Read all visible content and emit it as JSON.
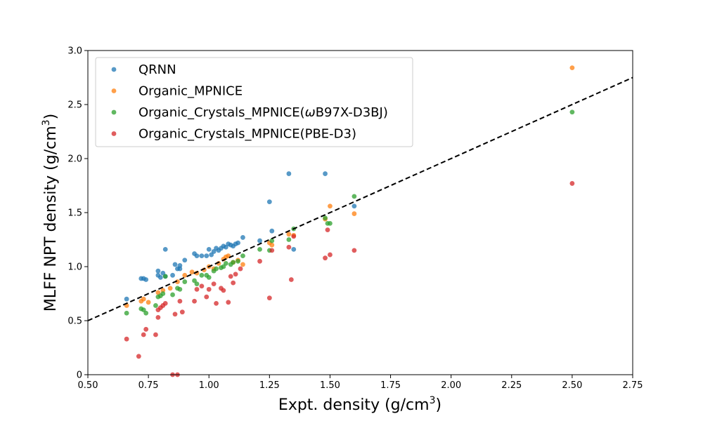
{
  "chart_data": {
    "type": "scatter",
    "title": "",
    "xlabel": "Expt. density (g/cm",
    "xlabel_sup": "3",
    "xlabel_end": ")",
    "ylabel": "MLFF NPT density (g/cm",
    "ylabel_sup": "3",
    "ylabel_end": ")",
    "xlim": [
      0.5,
      2.75
    ],
    "ylim": [
      0.0,
      3.0
    ],
    "xticks": [
      0.5,
      0.75,
      1.0,
      1.25,
      1.5,
      1.75,
      2.0,
      2.25,
      2.5,
      2.75
    ],
    "xtick_labels": [
      "0.50",
      "0.75",
      "1.00",
      "1.25",
      "1.50",
      "1.75",
      "2.00",
      "2.25",
      "2.50",
      "2.75"
    ],
    "yticks": [
      0.0,
      0.5,
      1.0,
      1.5,
      2.0,
      2.5,
      3.0
    ],
    "ytick_labels": [
      "0",
      "0.5",
      "1.0",
      "1.5",
      "2.0",
      "2.5",
      "3.0"
    ],
    "grid": false,
    "legend_position": "top-left",
    "reference_line": {
      "label": "y = x",
      "style": "dashed",
      "color": "#000000",
      "slope": 1,
      "intercept": 0
    },
    "series": [
      {
        "name": "QRNN",
        "legend_parts": [
          "QRNN"
        ],
        "color": "#1f77b4",
        "points": [
          [
            0.66,
            0.7
          ],
          [
            0.72,
            0.89
          ],
          [
            0.73,
            0.89
          ],
          [
            0.74,
            0.88
          ],
          [
            0.79,
            0.96
          ],
          [
            0.79,
            0.92
          ],
          [
            0.8,
            0.9
          ],
          [
            0.81,
            0.94
          ],
          [
            0.82,
            1.16
          ],
          [
            0.82,
            0.91
          ],
          [
            0.85,
            0.92
          ],
          [
            0.86,
            1.02
          ],
          [
            0.87,
            0.98
          ],
          [
            0.88,
            1.01
          ],
          [
            0.88,
            0.98
          ],
          [
            0.9,
            1.06
          ],
          [
            0.94,
            1.12
          ],
          [
            0.95,
            1.1
          ],
          [
            0.97,
            1.1
          ],
          [
            0.99,
            1.1
          ],
          [
            1.0,
            1.16
          ],
          [
            1.01,
            1.11
          ],
          [
            1.02,
            1.14
          ],
          [
            1.03,
            1.17
          ],
          [
            1.04,
            1.15
          ],
          [
            1.05,
            1.17
          ],
          [
            1.06,
            1.19
          ],
          [
            1.07,
            1.18
          ],
          [
            1.08,
            1.21
          ],
          [
            1.09,
            1.2
          ],
          [
            1.1,
            1.19
          ],
          [
            1.11,
            1.21
          ],
          [
            1.12,
            1.22
          ],
          [
            1.14,
            1.27
          ],
          [
            1.21,
            1.24
          ],
          [
            1.25,
            1.6
          ],
          [
            1.26,
            1.33
          ],
          [
            1.33,
            1.86
          ],
          [
            1.35,
            1.16
          ],
          [
            1.48,
            1.86
          ],
          [
            1.6,
            1.56
          ]
        ]
      },
      {
        "name": "Organic_MPNICE",
        "legend_parts": [
          "Organic_MPNICE"
        ],
        "color": "#ff7f0e",
        "points": [
          [
            0.66,
            0.64
          ],
          [
            0.72,
            0.68
          ],
          [
            0.73,
            0.7
          ],
          [
            0.75,
            0.67
          ],
          [
            0.79,
            0.76
          ],
          [
            0.81,
            0.78
          ],
          [
            0.84,
            0.8
          ],
          [
            0.87,
            0.86
          ],
          [
            0.9,
            0.92
          ],
          [
            0.93,
            0.95
          ],
          [
            0.95,
            0.94
          ],
          [
            0.98,
            0.97
          ],
          [
            1.0,
            1.0
          ],
          [
            1.02,
            0.98
          ],
          [
            1.04,
            1.03
          ],
          [
            1.06,
            1.07
          ],
          [
            1.07,
            1.09
          ],
          [
            1.08,
            1.1
          ],
          [
            1.1,
            1.04
          ],
          [
            1.12,
            1.06
          ],
          [
            1.14,
            1.02
          ],
          [
            1.25,
            1.22
          ],
          [
            1.26,
            1.2
          ],
          [
            1.33,
            1.3
          ],
          [
            1.35,
            1.29
          ],
          [
            1.48,
            1.44
          ],
          [
            1.5,
            1.56
          ],
          [
            1.6,
            1.49
          ],
          [
            2.5,
            2.84
          ]
        ]
      },
      {
        "name": "Organic_Crystals_MPNICE(ωB97X-D3BJ)",
        "legend_parts": [
          "Organic_Crystals_MPNICE(",
          "ω",
          "B97X-D3BJ)"
        ],
        "color": "#2ca02c",
        "points": [
          [
            0.66,
            0.57
          ],
          [
            0.72,
            0.61
          ],
          [
            0.73,
            0.6
          ],
          [
            0.74,
            0.57
          ],
          [
            0.78,
            0.64
          ],
          [
            0.79,
            0.72
          ],
          [
            0.8,
            0.73
          ],
          [
            0.81,
            0.75
          ],
          [
            0.82,
            0.91
          ],
          [
            0.85,
            0.74
          ],
          [
            0.87,
            0.8
          ],
          [
            0.88,
            0.79
          ],
          [
            0.9,
            0.86
          ],
          [
            0.94,
            0.87
          ],
          [
            0.95,
            0.84
          ],
          [
            0.97,
            0.92
          ],
          [
            0.99,
            0.92
          ],
          [
            1.0,
            0.9
          ],
          [
            1.02,
            0.96
          ],
          [
            1.03,
            0.98
          ],
          [
            1.05,
            0.99
          ],
          [
            1.06,
            1.0
          ],
          [
            1.07,
            1.03
          ],
          [
            1.09,
            1.02
          ],
          [
            1.1,
            1.04
          ],
          [
            1.12,
            1.05
          ],
          [
            1.14,
            1.1
          ],
          [
            1.21,
            1.16
          ],
          [
            1.25,
            1.15
          ],
          [
            1.26,
            1.24
          ],
          [
            1.33,
            1.25
          ],
          [
            1.35,
            1.35
          ],
          [
            1.48,
            1.45
          ],
          [
            1.49,
            1.4
          ],
          [
            1.5,
            1.4
          ],
          [
            1.6,
            1.65
          ],
          [
            2.5,
            2.43
          ]
        ]
      },
      {
        "name": "Organic_Crystals_MPNICE(PBE-D3)",
        "legend_parts": [
          "Organic_Crystals_MPNICE(PBE-D3)"
        ],
        "color": "#d62728",
        "points": [
          [
            0.66,
            0.33
          ],
          [
            0.71,
            0.17
          ],
          [
            0.73,
            0.37
          ],
          [
            0.74,
            0.42
          ],
          [
            0.78,
            0.37
          ],
          [
            0.79,
            0.53
          ],
          [
            0.79,
            0.6
          ],
          [
            0.8,
            0.62
          ],
          [
            0.81,
            0.64
          ],
          [
            0.82,
            0.66
          ],
          [
            0.85,
            0.0
          ],
          [
            0.86,
            0.56
          ],
          [
            0.87,
            0.0
          ],
          [
            0.88,
            0.68
          ],
          [
            0.89,
            0.58
          ],
          [
            0.94,
            0.68
          ],
          [
            0.95,
            0.79
          ],
          [
            0.97,
            0.82
          ],
          [
            0.99,
            0.72
          ],
          [
            1.0,
            0.79
          ],
          [
            1.02,
            0.84
          ],
          [
            1.03,
            0.66
          ],
          [
            1.05,
            0.8
          ],
          [
            1.06,
            0.78
          ],
          [
            1.08,
            0.67
          ],
          [
            1.09,
            0.91
          ],
          [
            1.1,
            0.85
          ],
          [
            1.11,
            0.93
          ],
          [
            1.13,
            0.98
          ],
          [
            1.21,
            1.05
          ],
          [
            1.25,
            0.71
          ],
          [
            1.26,
            1.15
          ],
          [
            1.33,
            1.18
          ],
          [
            1.34,
            0.88
          ],
          [
            1.35,
            1.28
          ],
          [
            1.48,
            1.08
          ],
          [
            1.49,
            1.34
          ],
          [
            1.5,
            1.11
          ],
          [
            1.6,
            1.15
          ],
          [
            2.5,
            1.77
          ]
        ]
      }
    ]
  }
}
